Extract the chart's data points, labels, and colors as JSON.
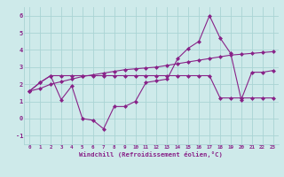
{
  "x": [
    0,
    1,
    2,
    3,
    4,
    5,
    6,
    7,
    8,
    9,
    10,
    11,
    12,
    13,
    14,
    15,
    16,
    17,
    18,
    19,
    20,
    21,
    22,
    23
  ],
  "line1": [
    1.6,
    2.1,
    2.5,
    1.1,
    1.9,
    0.0,
    -0.1,
    -0.6,
    0.7,
    0.7,
    1.0,
    2.1,
    2.2,
    2.3,
    3.5,
    4.1,
    4.5,
    6.0,
    4.7,
    3.8,
    1.1,
    2.7,
    2.7,
    2.8
  ],
  "line2": [
    1.6,
    2.1,
    2.5,
    2.5,
    2.5,
    2.5,
    2.5,
    2.5,
    2.5,
    2.5,
    2.5,
    2.5,
    2.5,
    2.5,
    2.5,
    2.5,
    2.5,
    2.5,
    1.2,
    1.2,
    1.2,
    1.2,
    1.2,
    1.2
  ],
  "trend": [
    1.6,
    1.75,
    2.0,
    2.15,
    2.3,
    2.45,
    2.55,
    2.65,
    2.75,
    2.85,
    2.9,
    2.95,
    3.0,
    3.1,
    3.2,
    3.3,
    3.4,
    3.5,
    3.6,
    3.7,
    3.75,
    3.8,
    3.85,
    3.9
  ],
  "bg_color": "#ceeaea",
  "grid_color": "#aad4d4",
  "line_color": "#882288",
  "xlabel": "Windchill (Refroidissement éolien,°C)",
  "xlim": [
    -0.5,
    23.5
  ],
  "ylim": [
    -1.5,
    6.5
  ],
  "yticks": [
    -1,
    0,
    1,
    2,
    3,
    4,
    5,
    6
  ],
  "xticks": [
    0,
    1,
    2,
    3,
    4,
    5,
    6,
    7,
    8,
    9,
    10,
    11,
    12,
    13,
    14,
    15,
    16,
    17,
    18,
    19,
    20,
    21,
    22,
    23
  ],
  "xtick_labels": [
    "0",
    "1",
    "2",
    "3",
    "4",
    "5",
    "6",
    "7",
    "8",
    "9",
    "10",
    "11",
    "12",
    "13",
    "14",
    "15",
    "16",
    "17",
    "18",
    "19",
    "20",
    "21",
    "22",
    "23"
  ]
}
